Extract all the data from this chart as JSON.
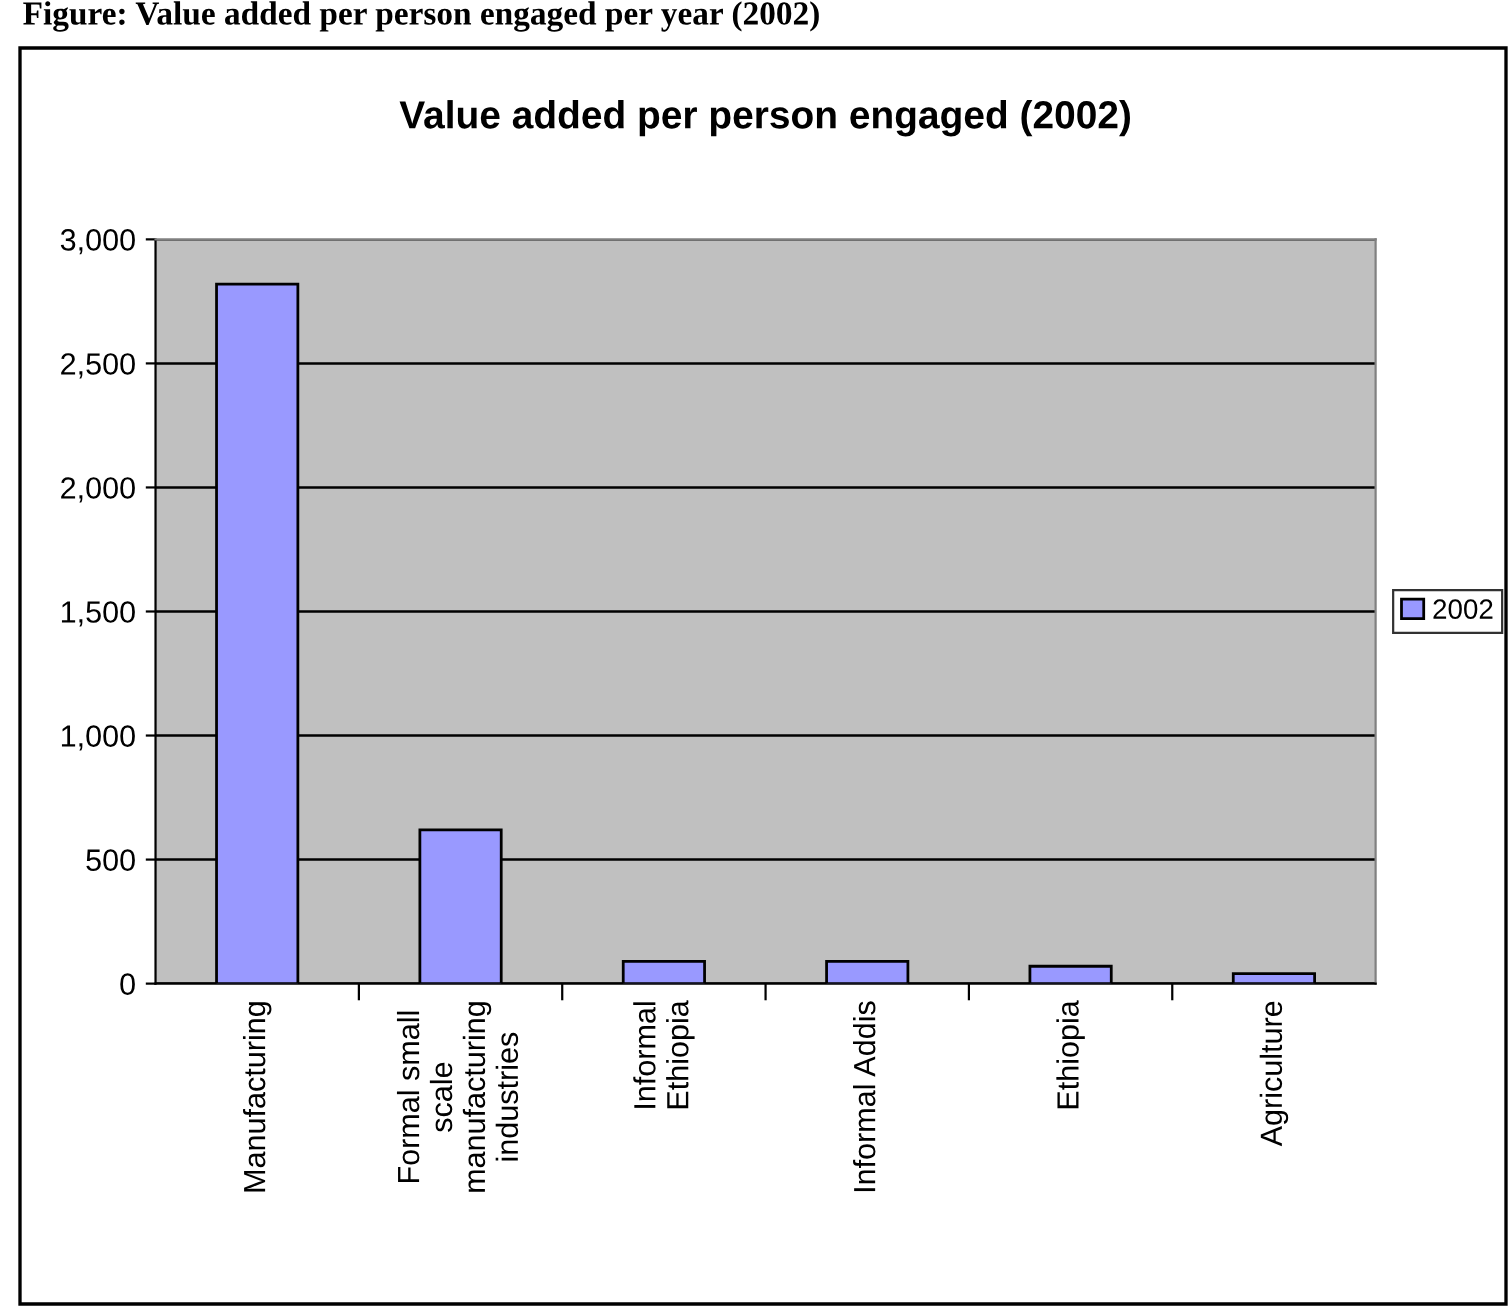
{
  "chart_data": {
    "type": "bar",
    "title": "Value added per person engaged (2002)",
    "annotations": [
      "Figure: Value added per person engaged per year (2002)"
    ],
    "categories": [
      "Manufacturing",
      "Formal small\nscale\nmanufacturing\nindustries",
      "Informal\nEthiopia",
      "Informal Addis",
      "Ethiopia",
      "Agriculture"
    ],
    "series": [
      {
        "name": "2002",
        "color": "#9999ff",
        "values": [
          2820,
          620,
          90,
          90,
          70,
          40
        ]
      }
    ],
    "ylim": [
      0,
      3000
    ],
    "yticks": [
      {
        "value": 0,
        "label": "0"
      },
      {
        "value": 500,
        "label": "500"
      },
      {
        "value": 1000,
        "label": "1,000"
      },
      {
        "value": 1500,
        "label": "1,500"
      },
      {
        "value": 2000,
        "label": "2,000"
      },
      {
        "value": 2500,
        "label": "2,500"
      },
      {
        "value": 3000,
        "label": "3,000"
      }
    ],
    "grid": "y",
    "legend": "right"
  }
}
